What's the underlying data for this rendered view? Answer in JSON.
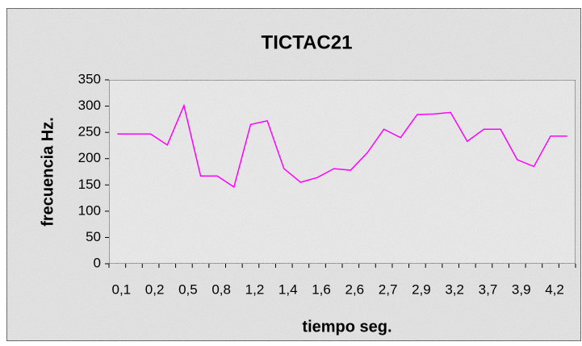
{
  "chart_data": {
    "type": "line",
    "title": "TICTAC21",
    "x_label": "tiempo seg.",
    "y_label": "frecuencia Hz.",
    "categories": [
      "0,1",
      null,
      "0,2",
      null,
      "0,5",
      null,
      "0,8",
      null,
      "1,2",
      null,
      "1,4",
      null,
      "1,6",
      null,
      "2,6",
      null,
      "2,7",
      null,
      "2,9",
      null,
      "3,2",
      null,
      "3,7",
      null,
      "3,9",
      null,
      "4,2",
      null
    ],
    "series": [
      {
        "name": "frecuencia",
        "color": "#ff00ff",
        "values": [
          247,
          247,
          247,
          226,
          301,
          167,
          167,
          146,
          265,
          272,
          181,
          155,
          164,
          181,
          178,
          211,
          256,
          240,
          284,
          285,
          288,
          233,
          256,
          256,
          198,
          185,
          243,
          243
        ]
      }
    ],
    "ylim": [
      0,
      350
    ],
    "yticks": [
      0,
      50,
      100,
      150,
      200,
      250,
      300,
      350
    ],
    "grid": false
  }
}
